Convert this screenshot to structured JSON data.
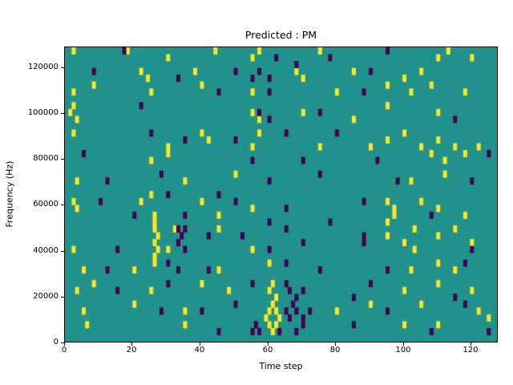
{
  "chart_data": {
    "type": "heatmap",
    "title": "Predicted : PM",
    "xlabel": "Time step",
    "ylabel": "Frequency (Hz)",
    "x_range": [
      0,
      128
    ],
    "y_range": [
      0,
      129000
    ],
    "x_ticks": [
      0,
      20,
      40,
      60,
      80,
      100,
      120
    ],
    "y_ticks": [
      0,
      20000,
      40000,
      60000,
      80000,
      100000,
      120000
    ],
    "time_steps": 128,
    "freq_bins": 43,
    "bin_hz": 3000,
    "legend": "none",
    "grid": false,
    "colors": {
      "background": "#21918c",
      "high": "#fde725",
      "low": "#440154",
      "axes": "#000000",
      "figure_bg": "#ffffff"
    },
    "cells": {
      "yellow": [
        [
          2,
          126000
        ],
        [
          18,
          126000
        ],
        [
          30,
          123000
        ],
        [
          44,
          126000
        ],
        [
          55,
          123000
        ],
        [
          57,
          126000
        ],
        [
          75,
          126000
        ],
        [
          110,
          123000
        ],
        [
          113,
          126000
        ],
        [
          120,
          123000
        ],
        [
          22,
          117000
        ],
        [
          24,
          114000
        ],
        [
          38,
          117000
        ],
        [
          68,
          117000
        ],
        [
          70,
          114000
        ],
        [
          85,
          117000
        ],
        [
          100,
          114000
        ],
        [
          105,
          117000
        ],
        [
          8,
          111000
        ],
        [
          25,
          108000
        ],
        [
          40,
          111000
        ],
        [
          55,
          108000
        ],
        [
          80,
          108000
        ],
        [
          95,
          111000
        ],
        [
          102,
          108000
        ],
        [
          108,
          111000
        ],
        [
          2,
          108000
        ],
        [
          118,
          108000
        ],
        [
          1,
          99000
        ],
        [
          2,
          102000
        ],
        [
          3,
          96000
        ],
        [
          55,
          99000
        ],
        [
          70,
          99000
        ],
        [
          85,
          96000
        ],
        [
          95,
          102000
        ],
        [
          110,
          99000
        ],
        [
          57,
          96000
        ],
        [
          2,
          90000
        ],
        [
          40,
          90000
        ],
        [
          42,
          87000
        ],
        [
          57,
          90000
        ],
        [
          95,
          87000
        ],
        [
          100,
          90000
        ],
        [
          30,
          84000
        ],
        [
          55,
          84000
        ],
        [
          75,
          84000
        ],
        [
          90,
          84000
        ],
        [
          105,
          84000
        ],
        [
          110,
          87000
        ],
        [
          115,
          84000
        ],
        [
          25,
          78000
        ],
        [
          30,
          81000
        ],
        [
          108,
          81000
        ],
        [
          112,
          78000
        ],
        [
          118,
          81000
        ],
        [
          122,
          84000
        ],
        [
          3,
          69000
        ],
        [
          35,
          69000
        ],
        [
          50,
          72000
        ],
        [
          102,
          69000
        ],
        [
          112,
          72000
        ],
        [
          2,
          60000
        ],
        [
          3,
          57000
        ],
        [
          22,
          60000
        ],
        [
          25,
          63000
        ],
        [
          40,
          60000
        ],
        [
          55,
          57000
        ],
        [
          95,
          60000
        ],
        [
          97,
          57000
        ],
        [
          105,
          60000
        ],
        [
          110,
          57000
        ],
        [
          26,
          54000
        ],
        [
          45,
          54000
        ],
        [
          95,
          51000
        ],
        [
          97,
          54000
        ],
        [
          118,
          54000
        ],
        [
          26,
          48000
        ],
        [
          26,
          51000
        ],
        [
          27,
          45000
        ],
        [
          32,
          48000
        ],
        [
          45,
          48000
        ],
        [
          95,
          45000
        ],
        [
          103,
          48000
        ],
        [
          110,
          45000
        ],
        [
          115,
          48000
        ],
        [
          2,
          39000
        ],
        [
          26,
          42000
        ],
        [
          27,
          39000
        ],
        [
          30,
          39000
        ],
        [
          55,
          39000
        ],
        [
          100,
          42000
        ],
        [
          103,
          39000
        ],
        [
          120,
          42000
        ],
        [
          5,
          30000
        ],
        [
          20,
          30000
        ],
        [
          26,
          33000
        ],
        [
          26,
          36000
        ],
        [
          45,
          30000
        ],
        [
          60,
          33000
        ],
        [
          102,
          30000
        ],
        [
          110,
          33000
        ],
        [
          115,
          30000
        ],
        [
          3,
          21000
        ],
        [
          8,
          24000
        ],
        [
          25,
          21000
        ],
        [
          40,
          24000
        ],
        [
          48,
          21000
        ],
        [
          60,
          21000
        ],
        [
          61,
          24000
        ],
        [
          62,
          18000
        ],
        [
          100,
          21000
        ],
        [
          110,
          24000
        ],
        [
          120,
          21000
        ],
        [
          5,
          12000
        ],
        [
          20,
          15000
        ],
        [
          35,
          12000
        ],
        [
          60,
          12000
        ],
        [
          61,
          15000
        ],
        [
          62,
          12000
        ],
        [
          63,
          9000
        ],
        [
          80,
          12000
        ],
        [
          90,
          15000
        ],
        [
          105,
          15000
        ],
        [
          122,
          12000
        ],
        [
          6,
          6000
        ],
        [
          35,
          6000
        ],
        [
          59,
          9000
        ],
        [
          60,
          6000
        ],
        [
          61,
          3000
        ],
        [
          62,
          6000
        ],
        [
          100,
          6000
        ],
        [
          110,
          6000
        ],
        [
          125,
          9000
        ]
      ],
      "purple": [
        [
          17,
          126000
        ],
        [
          62,
          123000
        ],
        [
          78,
          123000
        ],
        [
          95,
          126000
        ],
        [
          8,
          117000
        ],
        [
          33,
          114000
        ],
        [
          50,
          117000
        ],
        [
          55,
          114000
        ],
        [
          57,
          117000
        ],
        [
          60,
          114000
        ],
        [
          68,
          120000
        ],
        [
          90,
          117000
        ],
        [
          45,
          108000
        ],
        [
          60,
          108000
        ],
        [
          88,
          108000
        ],
        [
          22,
          102000
        ],
        [
          57,
          99000
        ],
        [
          60,
          96000
        ],
        [
          75,
          99000
        ],
        [
          115,
          96000
        ],
        [
          25,
          90000
        ],
        [
          35,
          87000
        ],
        [
          50,
          87000
        ],
        [
          65,
          90000
        ],
        [
          80,
          90000
        ],
        [
          125,
          81000
        ],
        [
          5,
          81000
        ],
        [
          55,
          78000
        ],
        [
          70,
          78000
        ],
        [
          92,
          78000
        ],
        [
          12,
          69000
        ],
        [
          28,
          72000
        ],
        [
          60,
          69000
        ],
        [
          75,
          72000
        ],
        [
          98,
          69000
        ],
        [
          120,
          69000
        ],
        [
          10,
          60000
        ],
        [
          30,
          63000
        ],
        [
          45,
          63000
        ],
        [
          50,
          60000
        ],
        [
          65,
          57000
        ],
        [
          88,
          60000
        ],
        [
          20,
          54000
        ],
        [
          35,
          54000
        ],
        [
          60,
          51000
        ],
        [
          78,
          51000
        ],
        [
          108,
          54000
        ],
        [
          33,
          48000
        ],
        [
          34,
          45000
        ],
        [
          35,
          48000
        ],
        [
          42,
          45000
        ],
        [
          52,
          45000
        ],
        [
          65,
          48000
        ],
        [
          88,
          45000
        ],
        [
          15,
          39000
        ],
        [
          33,
          42000
        ],
        [
          35,
          39000
        ],
        [
          60,
          39000
        ],
        [
          70,
          42000
        ],
        [
          88,
          42000
        ],
        [
          120,
          39000
        ],
        [
          12,
          30000
        ],
        [
          30,
          33000
        ],
        [
          33,
          30000
        ],
        [
          42,
          30000
        ],
        [
          65,
          33000
        ],
        [
          75,
          30000
        ],
        [
          95,
          30000
        ],
        [
          118,
          33000
        ],
        [
          15,
          21000
        ],
        [
          30,
          24000
        ],
        [
          55,
          24000
        ],
        [
          65,
          24000
        ],
        [
          66,
          21000
        ],
        [
          68,
          18000
        ],
        [
          70,
          21000
        ],
        [
          85,
          18000
        ],
        [
          90,
          24000
        ],
        [
          115,
          18000
        ],
        [
          28,
          12000
        ],
        [
          40,
          12000
        ],
        [
          50,
          15000
        ],
        [
          65,
          12000
        ],
        [
          66,
          9000
        ],
        [
          67,
          15000
        ],
        [
          68,
          12000
        ],
        [
          70,
          9000
        ],
        [
          72,
          12000
        ],
        [
          95,
          12000
        ],
        [
          118,
          15000
        ],
        [
          45,
          3000
        ],
        [
          55,
          3000
        ],
        [
          56,
          6000
        ],
        [
          57,
          3000
        ],
        [
          63,
          3000
        ],
        [
          68,
          3000
        ],
        [
          70,
          6000
        ],
        [
          85,
          6000
        ],
        [
          108,
          3000
        ],
        [
          125,
          3000
        ]
      ]
    }
  }
}
